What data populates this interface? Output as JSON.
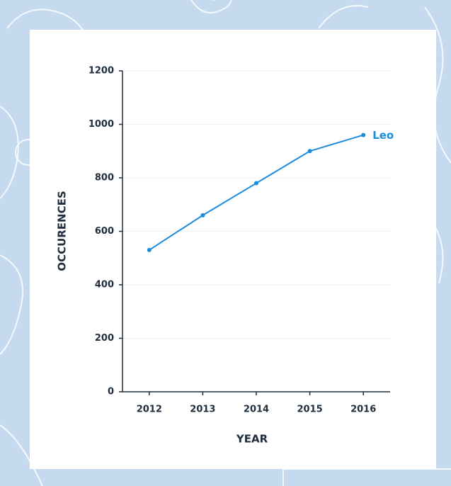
{
  "chart_data": {
    "type": "line",
    "categories": [
      "2012",
      "2013",
      "2014",
      "2015",
      "2016"
    ],
    "series": [
      {
        "name": "Leo",
        "color": "#1b8bdc",
        "values": [
          530,
          660,
          780,
          900,
          960
        ]
      }
    ],
    "xlabel": "YEAR",
    "ylabel": "OCCURENCES",
    "ylim": [
      0,
      1200
    ],
    "yticks": [
      0,
      200,
      400,
      600,
      800,
      1000,
      1200
    ],
    "grid": true
  }
}
